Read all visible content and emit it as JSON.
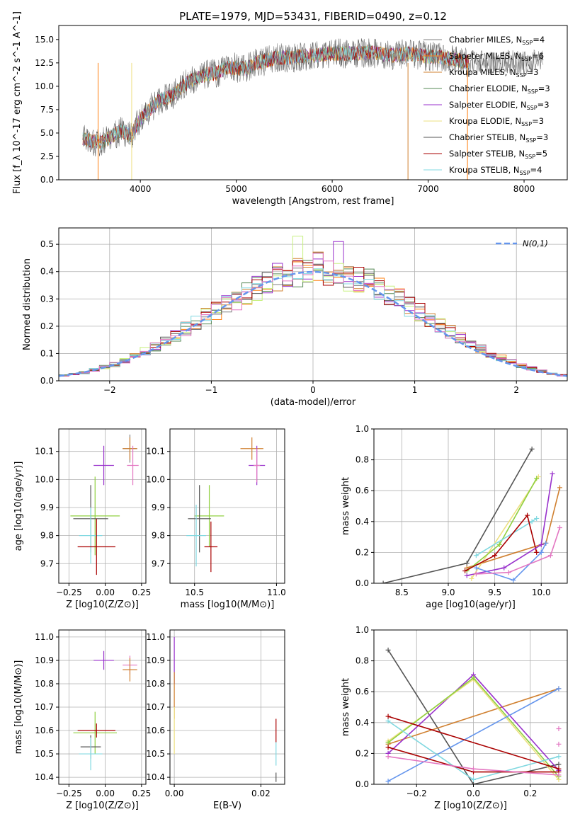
{
  "title": "PLATE=1979, MJD=53431, FIBERID=0490, z=0.12",
  "colors": [
    "#808080",
    "#ff7f0e",
    "#d08030",
    "#558855",
    "#9932cc",
    "#eee080",
    "#555555",
    "#aa0000",
    "#80d8e0"
  ],
  "chart_data": [
    {
      "type": "line",
      "id": "spectrum",
      "xlabel": "wavelength [Angstrom, rest frame]",
      "ylabel": "Flux [f_λ 10^-17 erg cm^-2 s^-1 A^-1]",
      "xlim": [
        3150,
        8450
      ],
      "ylim": [
        0,
        16.5
      ],
      "xticks": [
        4000,
        5000,
        6000,
        7000,
        8000
      ],
      "yticks": [
        0.0,
        2.5,
        5.0,
        7.5,
        10.0,
        12.5,
        15.0
      ],
      "ytick_labels": [
        "0.0",
        "2.5",
        "5.0",
        "7.5",
        "10.0",
        "12.5",
        "15.0"
      ],
      "continuum": [
        [
          3400,
          4.3
        ],
        [
          3600,
          4.0
        ],
        [
          3800,
          5.3
        ],
        [
          3900,
          4.7
        ],
        [
          4000,
          6.5
        ],
        [
          4100,
          7.6
        ],
        [
          4200,
          8.5
        ],
        [
          4300,
          8.8
        ],
        [
          4400,
          9.6
        ],
        [
          4500,
          10.5
        ],
        [
          4600,
          10.9
        ],
        [
          4700,
          11.3
        ],
        [
          4800,
          11.4
        ],
        [
          4900,
          12.0
        ],
        [
          5000,
          12.0
        ],
        [
          5100,
          11.8
        ],
        [
          5200,
          12.5
        ],
        [
          5300,
          12.7
        ],
        [
          5400,
          13.0
        ],
        [
          5600,
          13.1
        ],
        [
          5800,
          13.3
        ],
        [
          6000,
          13.5
        ],
        [
          6200,
          13.5
        ],
        [
          6400,
          13.6
        ],
        [
          6600,
          13.3
        ],
        [
          6800,
          13.5
        ],
        [
          7000,
          13.2
        ],
        [
          7200,
          13.0
        ],
        [
          7400,
          12.6
        ]
      ],
      "legend_position": "upper right",
      "series": [
        {
          "name": "Chabrier MILES, N_SSP=4",
          "color": "#808080"
        },
        {
          "name": "Salpeter MILES, N_SSP=6",
          "color": "#ff7f0e"
        },
        {
          "name": "Kroupa MILES, N_SSP=3",
          "color": "#d08030"
        },
        {
          "name": "Chabrier ELODIE, N_SSP=3",
          "color": "#558855"
        },
        {
          "name": "Salpeter ELODIE, N_SSP=3",
          "color": "#9932cc"
        },
        {
          "name": "Kroupa ELODIE, N_SSP=3",
          "color": "#eee080"
        },
        {
          "name": "Chabrier STELIB, N_SSP=3",
          "color": "#555555"
        },
        {
          "name": "Salpeter STELIB, N_SSP=5",
          "color": "#aa0000"
        },
        {
          "name": "Kroupa STELIB, N_SSP=4",
          "color": "#80d8e0"
        }
      ],
      "legend_items": [
        {
          "pre": "Chabrier MILES, N",
          "sub": "SSP",
          "post": "=4"
        },
        {
          "pre": "Salpeter MILES, N",
          "sub": "SSP",
          "post": "=6"
        },
        {
          "pre": "Kroupa MILES, N",
          "sub": "SSP",
          "post": "=3"
        },
        {
          "pre": "Chabrier ELODIE, N",
          "sub": "SSP",
          "post": "=3"
        },
        {
          "pre": "Salpeter ELODIE, N",
          "sub": "SSP",
          "post": "=3"
        },
        {
          "pre": "Kroupa ELODIE, N",
          "sub": "SSP",
          "post": "=3"
        },
        {
          "pre": "Chabrier STELIB, N",
          "sub": "SSP",
          "post": "=3"
        },
        {
          "pre": "Salpeter STELIB, N",
          "sub": "SSP",
          "post": "=5"
        },
        {
          "pre": "Kroupa STELIB, N",
          "sub": "SSP",
          "post": "=4"
        }
      ]
    },
    {
      "type": "line",
      "id": "residual-hist",
      "xlabel": "(data-model)/error",
      "ylabel": "Normed distribution",
      "xlim": [
        -2.5,
        2.5
      ],
      "ylim": [
        0,
        0.56
      ],
      "xticks": [
        -2,
        -1,
        0,
        1,
        2
      ],
      "xtick_labels": [
        "−2",
        "−1",
        "0",
        "1",
        "2"
      ],
      "yticks": [
        0.0,
        0.1,
        0.2,
        0.3,
        0.4,
        0.5
      ],
      "ytick_labels": [
        "0.0",
        "0.1",
        "0.2",
        "0.3",
        "0.4",
        "0.5"
      ],
      "grid": true,
      "reference": {
        "name": "N(0,1)",
        "color": "#6495ed",
        "style": "dashed"
      },
      "bin_edges_start": -2.5,
      "bin_width": 0.1,
      "base_hist": [
        0.02,
        0.025,
        0.03,
        0.04,
        0.05,
        0.06,
        0.075,
        0.09,
        0.11,
        0.125,
        0.145,
        0.165,
        0.19,
        0.21,
        0.24,
        0.26,
        0.28,
        0.3,
        0.32,
        0.34,
        0.37,
        0.38,
        0.39,
        0.4,
        0.405,
        0.42,
        0.4,
        0.39,
        0.38,
        0.375,
        0.36,
        0.34,
        0.32,
        0.3,
        0.27,
        0.25,
        0.22,
        0.2,
        0.18,
        0.16,
        0.14,
        0.12,
        0.1,
        0.085,
        0.07,
        0.055,
        0.045,
        0.035,
        0.025,
        0.02
      ],
      "series_colors": [
        "#808080",
        "#ff7f0e",
        "#d08030",
        "#558855",
        "#9932cc",
        "#c8f080",
        "#555555",
        "#aa0000",
        "#80d8e0",
        "#e377c2"
      ]
    },
    {
      "type": "scatter",
      "id": "age-vs-Z",
      "xlabel": "Z [log10(Z/Z⊙)]",
      "ylabel": "age [log10(age/yr)]",
      "xlim": [
        -0.32,
        0.28
      ],
      "ylim": [
        9.63,
        10.18
      ],
      "xticks": [
        -0.25,
        0.0,
        0.25
      ],
      "xtick_labels": [
        "−0.25",
        "0.00",
        "0.25"
      ],
      "yticks": [
        9.7,
        9.8,
        9.9,
        10.0,
        10.1
      ],
      "ytick_labels": [
        "9.7",
        "9.8",
        "9.9",
        "10.0",
        "10.1"
      ],
      "grid": true,
      "points": [
        {
          "x": 0.17,
          "y": 10.11,
          "xerr": 0.05,
          "yerr": 0.05,
          "color": "#808080"
        },
        {
          "x": 0.17,
          "y": 10.11,
          "xerr": 0.05,
          "yerr": 0.04,
          "color": "#d08030"
        },
        {
          "x": 0.19,
          "y": 10.05,
          "xerr": 0.04,
          "yerr": 0.07,
          "color": "#e377c2"
        },
        {
          "x": -0.01,
          "y": 10.05,
          "xerr": 0.07,
          "yerr": 0.07,
          "color": "#9932cc"
        },
        {
          "x": -0.07,
          "y": 9.87,
          "xerr": 0.17,
          "yerr": 0.14,
          "color": "#90d040"
        },
        {
          "x": -0.1,
          "y": 9.86,
          "xerr": 0.12,
          "yerr": 0.12,
          "color": "#555555"
        },
        {
          "x": -0.1,
          "y": 9.8,
          "xerr": 0.08,
          "yerr": 0.1,
          "color": "#80d8e0"
        },
        {
          "x": -0.06,
          "y": 9.76,
          "xerr": 0.13,
          "yerr": 0.1,
          "color": "#aa0000"
        }
      ]
    },
    {
      "type": "scatter",
      "id": "age-vs-mass",
      "xlabel": "mass [log10(M/M⊙)]",
      "ylabel": "",
      "xlim": [
        10.35,
        11.05
      ],
      "ylim": [
        9.63,
        10.18
      ],
      "xticks": [
        10.5,
        11.0
      ],
      "xtick_labels": [
        "10.5",
        "11.0"
      ],
      "yticks": [
        9.7,
        9.8,
        9.9,
        10.0,
        10.1
      ],
      "ytick_labels": [
        "9.7",
        "9.8",
        "9.9",
        "10.0",
        "10.1"
      ],
      "grid": true,
      "points": [
        {
          "x": 10.85,
          "y": 10.11,
          "xerr": 0.07,
          "yerr": 0.04,
          "color": "#d08030"
        },
        {
          "x": 10.88,
          "y": 10.05,
          "xerr": 0.05,
          "yerr": 0.07,
          "color": "#9932cc"
        },
        {
          "x": 10.88,
          "y": 10.05,
          "xerr": 0.02,
          "yerr": 0.06,
          "color": "#e377c2"
        },
        {
          "x": 10.59,
          "y": 9.87,
          "xerr": 0.09,
          "yerr": 0.11,
          "color": "#90d040"
        },
        {
          "x": 10.53,
          "y": 9.86,
          "xerr": 0.07,
          "yerr": 0.12,
          "color": "#555555"
        },
        {
          "x": 10.51,
          "y": 9.8,
          "xerr": 0.06,
          "yerr": 0.11,
          "color": "#80d8e0"
        },
        {
          "x": 10.6,
          "y": 9.76,
          "xerr": 0.04,
          "yerr": 0.09,
          "color": "#aa0000"
        }
      ]
    },
    {
      "type": "line",
      "id": "mass-weight-vs-age",
      "xlabel": "age [log10(age/yr)]",
      "ylabel": "mass weight",
      "xlim": [
        8.2,
        10.28
      ],
      "ylim": [
        0,
        1.0
      ],
      "xticks": [
        8.5,
        9.0,
        9.5,
        10.0
      ],
      "xtick_labels": [
        "8.5",
        "9.0",
        "9.5",
        "10.0"
      ],
      "yticks": [
        0.0,
        0.2,
        0.4,
        0.6,
        0.8,
        1.0
      ],
      "ytick_labels": [
        "0.0",
        "0.2",
        "0.4",
        "0.6",
        "0.8",
        "1.0"
      ],
      "grid": true,
      "series": [
        {
          "color": "#555555",
          "x": [
            8.3,
            9.2,
            9.9
          ],
          "y": [
            0.0,
            0.13,
            0.87
          ]
        },
        {
          "color": "#d08030",
          "x": [
            9.2,
            10.05,
            10.2
          ],
          "y": [
            0.1,
            0.26,
            0.62
          ]
        },
        {
          "color": "#eee080",
          "x": [
            9.25,
            9.97
          ],
          "y": [
            0.03,
            0.69
          ]
        },
        {
          "color": "#90d040",
          "x": [
            9.2,
            9.55,
            9.95
          ],
          "y": [
            0.08,
            0.25,
            0.68
          ]
        },
        {
          "color": "#80d8e0",
          "x": [
            9.3,
            9.9,
            9.95
          ],
          "y": [
            0.18,
            0.4,
            0.42
          ]
        },
        {
          "color": "#aa0000",
          "x": [
            9.18,
            9.5,
            9.85,
            9.95
          ],
          "y": [
            0.08,
            0.18,
            0.44,
            0.2
          ]
        },
        {
          "color": "#9932cc",
          "x": [
            9.2,
            9.6,
            10.0,
            10.12
          ],
          "y": [
            0.05,
            0.1,
            0.25,
            0.71
          ]
        },
        {
          "color": "#6495ed",
          "x": [
            9.3,
            9.7,
            10.0,
            10.05
          ],
          "y": [
            0.1,
            0.02,
            0.2,
            0.26
          ]
        },
        {
          "color": "#e377c2",
          "x": [
            9.3,
            9.65,
            10.1,
            10.2
          ],
          "y": [
            0.06,
            0.07,
            0.18,
            0.36
          ]
        }
      ]
    },
    {
      "type": "scatter",
      "id": "mass-vs-Z",
      "xlabel": "Z [log10(Z/Z⊙)]",
      "ylabel": "mass [log10(M/M⊙)]",
      "xlim": [
        -0.32,
        0.28
      ],
      "ylim": [
        10.37,
        11.03
      ],
      "xticks": [
        -0.25,
        0.0,
        0.25
      ],
      "xtick_labels": [
        "−0.25",
        "0.00",
        "0.25"
      ],
      "yticks": [
        10.4,
        10.5,
        10.6,
        10.7,
        10.8,
        10.9,
        11.0
      ],
      "ytick_labels": [
        "10.4",
        "10.5",
        "10.6",
        "10.7",
        "10.8",
        "10.9",
        "11.0"
      ],
      "grid": true,
      "points": [
        {
          "x": 0.17,
          "y": 10.88,
          "xerr": 0.05,
          "yerr": 0.04,
          "color": "#e377c2"
        },
        {
          "x": 0.17,
          "y": 10.86,
          "xerr": 0.05,
          "yerr": 0.05,
          "color": "#d08030"
        },
        {
          "x": -0.01,
          "y": 10.9,
          "xerr": 0.07,
          "yerr": 0.04,
          "color": "#9932cc"
        },
        {
          "x": -0.07,
          "y": 10.59,
          "xerr": 0.15,
          "yerr": 0.09,
          "color": "#90d040"
        },
        {
          "x": -0.06,
          "y": 10.6,
          "xerr": 0.13,
          "yerr": 0.03,
          "color": "#aa0000"
        },
        {
          "x": -0.1,
          "y": 10.53,
          "xerr": 0.07,
          "yerr": 0.05,
          "color": "#555555"
        },
        {
          "x": -0.1,
          "y": 10.5,
          "xerr": 0.08,
          "yerr": 0.07,
          "color": "#80d8e0"
        }
      ]
    },
    {
      "type": "scatter",
      "id": "mass-vs-EBV",
      "xlabel": "E(B-V)",
      "ylabel": "",
      "xlim": [
        -0.001,
        0.0255
      ],
      "ylim": [
        10.37,
        11.03
      ],
      "xticks": [
        0.0,
        0.02
      ],
      "xtick_labels": [
        "0.00",
        "0.02"
      ],
      "yticks": [
        10.4,
        10.5,
        10.6,
        10.7,
        10.8,
        10.9,
        11.0
      ],
      "ytick_labels": [
        "10.4",
        "10.5",
        "10.6",
        "10.7",
        "10.8",
        "10.9",
        "11.0"
      ],
      "grid": true,
      "points": [
        {
          "x": 0.0,
          "y": 10.9,
          "xerr": 0,
          "yerr": 0.1,
          "color": "#9932cc"
        },
        {
          "x": 0.0,
          "y": 10.75,
          "xerr": 0,
          "yerr": 0.1,
          "color": "#d08030"
        },
        {
          "x": 0.0,
          "y": 10.6,
          "xerr": 0,
          "yerr": 0.1,
          "color": "#eee080"
        },
        {
          "x": 0.0235,
          "y": 10.6,
          "xerr": 0,
          "yerr": 0.05,
          "color": "#aa0000"
        },
        {
          "x": 0.0235,
          "y": 10.5,
          "xerr": 0,
          "yerr": 0.05,
          "color": "#80d8e0"
        },
        {
          "x": 0.0235,
          "y": 10.4,
          "xerr": 0,
          "yerr": 0.02,
          "color": "#555555"
        }
      ]
    },
    {
      "type": "line",
      "id": "mass-weight-vs-Z",
      "xlabel": "Z [log10(Z/Z⊙)]",
      "ylabel": "mass weight",
      "xlim": [
        -0.35,
        0.33
      ],
      "ylim": [
        0,
        1.0
      ],
      "xticks": [
        -0.2,
        0.0,
        0.2
      ],
      "xtick_labels": [
        "−0.2",
        "0.0",
        "0.2"
      ],
      "yticks": [
        0.0,
        0.2,
        0.4,
        0.6,
        0.8,
        1.0
      ],
      "ytick_labels": [
        "0.0",
        "0.2",
        "0.4",
        "0.6",
        "0.8",
        "1.0"
      ],
      "grid": true,
      "series": [
        {
          "color": "#555555",
          "x": [
            -0.3,
            0.0,
            0.3
          ],
          "y": [
            0.87,
            0.0,
            0.13
          ]
        },
        {
          "color": "#d08030",
          "x": [
            -0.3,
            0.3
          ],
          "y": [
            0.26,
            0.62
          ]
        },
        {
          "color": "#9932cc",
          "x": [
            -0.3,
            0.0,
            0.3
          ],
          "y": [
            0.2,
            0.71,
            0.09
          ]
        },
        {
          "color": "#eee080",
          "x": [
            -0.3,
            0.0,
            0.3
          ],
          "y": [
            0.28,
            0.68,
            0.03
          ]
        },
        {
          "color": "#90d040",
          "x": [
            -0.3,
            0.0,
            0.3
          ],
          "y": [
            0.27,
            0.69,
            0.05
          ]
        },
        {
          "color": "#6495ed",
          "x": [
            -0.3,
            0.3
          ],
          "y": [
            0.02,
            0.62
          ]
        },
        {
          "color": "#80d8e0",
          "x": [
            -0.3,
            0.0,
            0.3
          ],
          "y": [
            0.41,
            0.03,
            0.18
          ]
        },
        {
          "color": "#aa0000",
          "x": [
            -0.3,
            0.0,
            0.3
          ],
          "y": [
            0.24,
            0.08,
            0.08
          ]
        },
        {
          "color": "#aa0000",
          "x": [
            -0.3,
            0.3
          ],
          "y": [
            0.44,
            0.1
          ]
        },
        {
          "color": "#e377c2",
          "x": [
            -0.3,
            0.0,
            0.3
          ],
          "y": [
            0.18,
            0.1,
            0.06
          ]
        },
        {
          "color": "#e377c2",
          "x": [
            0.3
          ],
          "y": [
            0.36
          ]
        },
        {
          "color": "#e377c2",
          "x": [
            0.3
          ],
          "y": [
            0.26
          ]
        }
      ]
    }
  ]
}
